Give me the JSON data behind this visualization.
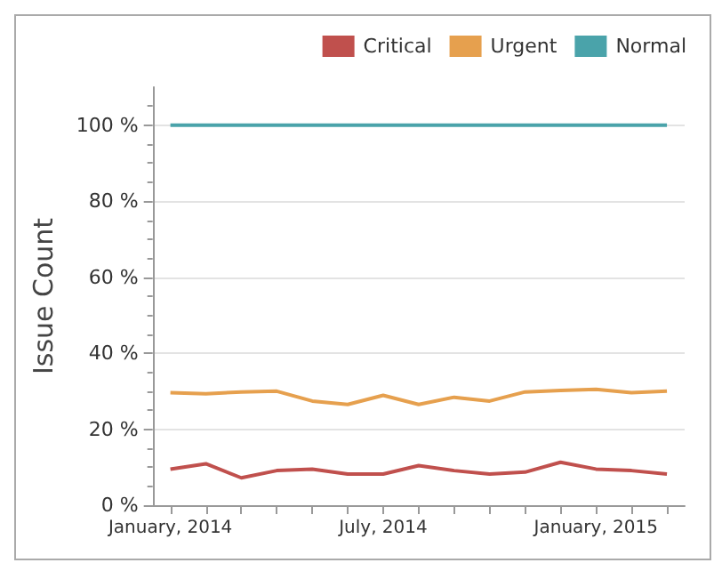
{
  "chart_data": {
    "type": "line",
    "ylabel": "Issue Count",
    "categories": [
      "January, 2014",
      null,
      null,
      null,
      null,
      null,
      "July, 2014",
      null,
      null,
      null,
      null,
      null,
      "January, 2015",
      null,
      null
    ],
    "series": [
      {
        "name": "Critical",
        "color": "#c0504d",
        "values": [
          9.5,
          10.9,
          7.2,
          9.1,
          9.5,
          8.2,
          8.2,
          10.4,
          9.1,
          8.2,
          8.7,
          11.3,
          9.5,
          9.1,
          8.2
        ]
      },
      {
        "name": "Urgent",
        "color": "#e6a04e",
        "values": [
          29.6,
          29.3,
          29.8,
          30.0,
          27.4,
          26.5,
          28.9,
          26.5,
          28.4,
          27.4,
          29.8,
          30.2,
          30.5,
          29.6,
          30.0
        ]
      },
      {
        "name": "Normal",
        "color": "#4aa3aa",
        "values": [
          100,
          100,
          100,
          100,
          100,
          100,
          100,
          100,
          100,
          100,
          100,
          100,
          100,
          100,
          100
        ]
      }
    ],
    "ylim": [
      0,
      110
    ],
    "yticks": [
      {
        "value": 0,
        "label": "0 %"
      },
      {
        "value": 20,
        "label": "20 %"
      },
      {
        "value": 40,
        "label": "40 %"
      },
      {
        "value": 60,
        "label": "60 %"
      },
      {
        "value": 80,
        "label": "80 %"
      },
      {
        "value": 100,
        "label": "100 %"
      }
    ],
    "grid": "y",
    "legend": "top right",
    "marker": "none",
    "line_style": "solid"
  }
}
